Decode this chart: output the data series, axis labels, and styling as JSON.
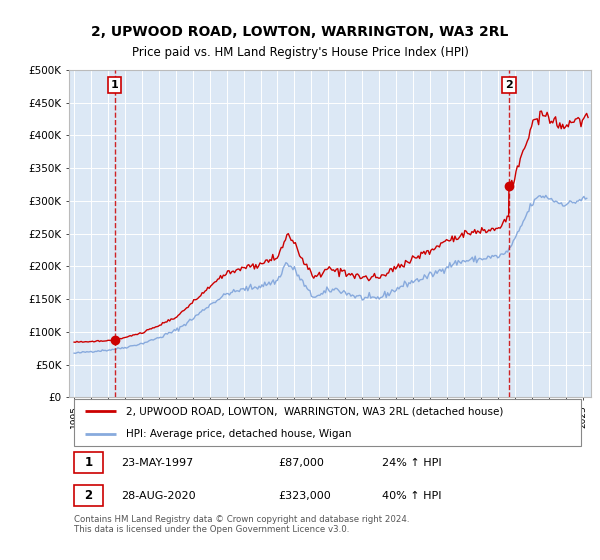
{
  "title": "2, UPWOOD ROAD, LOWTON, WARRINGTON, WA3 2RL",
  "subtitle": "Price paid vs. HM Land Registry's House Price Index (HPI)",
  "yticks": [
    0,
    50000,
    100000,
    150000,
    200000,
    250000,
    300000,
    350000,
    400000,
    450000,
    500000
  ],
  "ytick_labels": [
    "£0",
    "£50K",
    "£100K",
    "£150K",
    "£200K",
    "£250K",
    "£300K",
    "£350K",
    "£400K",
    "£450K",
    "£500K"
  ],
  "xlim_start": 1994.7,
  "xlim_end": 2025.5,
  "ylim": [
    0,
    500000
  ],
  "sale1_date": 1997.39,
  "sale1_price": 87000,
  "sale1_label": "1",
  "sale2_date": 2020.66,
  "sale2_price": 323000,
  "sale2_label": "2",
  "legend_line1": "2, UPWOOD ROAD, LOWTON,  WARRINGTON, WA3 2RL (detached house)",
  "legend_line2": "HPI: Average price, detached house, Wigan",
  "table_row1": [
    "1",
    "23-MAY-1997",
    "£87,000",
    "24% ↑ HPI"
  ],
  "table_row2": [
    "2",
    "28-AUG-2020",
    "£323,000",
    "40% ↑ HPI"
  ],
  "footer": "Contains HM Land Registry data © Crown copyright and database right 2024.\nThis data is licensed under the Open Government Licence v3.0.",
  "price_line_color": "#cc0000",
  "hpi_line_color": "#88aadd",
  "background_color": "#dce8f5",
  "grid_color": "#ffffff"
}
